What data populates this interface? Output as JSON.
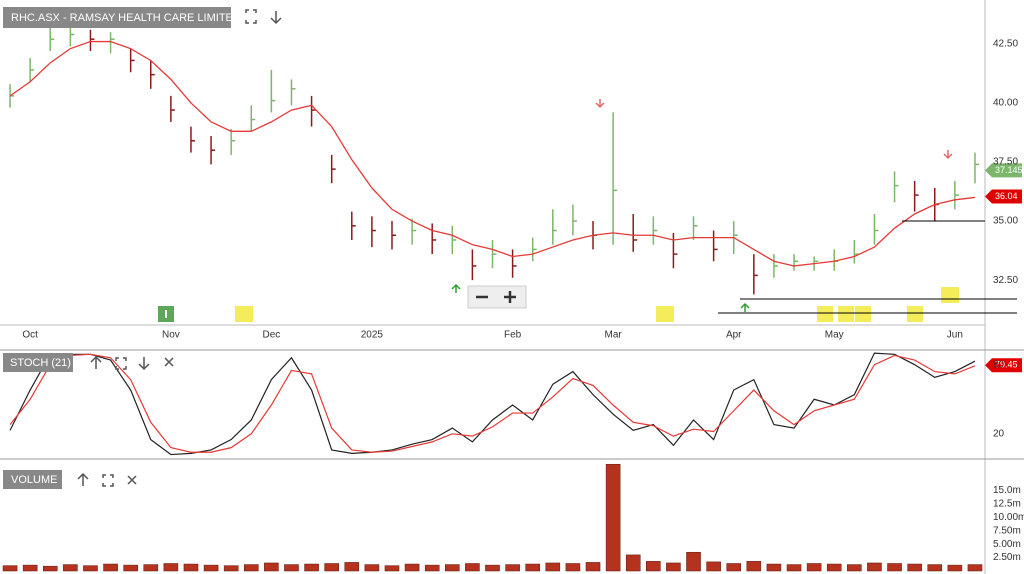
{
  "chart_data": [
    {
      "type": "ohlc",
      "title": "RHC.ASX - RAMSAY HEALTH CARE LIMITED",
      "categories": [
        null,
        "Oct",
        null,
        null,
        null,
        null,
        null,
        null,
        "Nov",
        null,
        null,
        null,
        null,
        "Dec",
        null,
        null,
        null,
        null,
        "2025",
        null,
        null,
        null,
        null,
        null,
        null,
        "Feb",
        null,
        null,
        null,
        null,
        "Mar",
        null,
        null,
        null,
        null,
        null,
        "Apr",
        null,
        null,
        null,
        null,
        "May",
        null,
        null,
        null,
        null,
        null,
        "Jun",
        null
      ],
      "high": [
        40.8,
        41.9,
        43.2,
        43.3,
        43.1,
        43.0,
        42.3,
        41.8,
        40.3,
        39.0,
        38.6,
        38.9,
        39.9,
        41.4,
        41.0,
        40.3,
        37.8,
        35.4,
        35.2,
        35.0,
        35.1,
        34.9,
        34.8,
        33.8,
        34.2,
        33.8,
        34.3,
        35.5,
        35.7,
        35.0,
        39.6,
        35.3,
        35.2,
        34.5,
        35.2,
        34.6,
        35.0,
        33.6,
        33.6,
        33.6,
        33.5,
        33.8,
        34.2,
        35.3,
        37.1,
        36.7,
        36.4,
        36.7,
        37.9
      ],
      "low": [
        39.8,
        40.9,
        42.2,
        42.4,
        42.2,
        42.1,
        41.3,
        40.6,
        39.2,
        37.9,
        37.4,
        37.8,
        38.8,
        39.6,
        39.9,
        39.0,
        36.6,
        34.2,
        33.9,
        33.8,
        34.0,
        33.6,
        33.6,
        32.5,
        33.0,
        32.6,
        33.3,
        34.0,
        34.4,
        33.8,
        34.0,
        33.7,
        34.0,
        33.0,
        34.2,
        33.3,
        33.6,
        31.9,
        32.6,
        32.9,
        32.9,
        32.9,
        33.2,
        34.0,
        35.8,
        35.4,
        35.0,
        35.5,
        36.6
      ],
      "close": [
        40.3,
        41.4,
        42.7,
        42.9,
        42.7,
        42.7,
        41.8,
        41.2,
        39.7,
        38.4,
        38.0,
        38.4,
        39.3,
        40.1,
        40.6,
        39.7,
        37.2,
        34.8,
        34.6,
        34.4,
        34.6,
        34.2,
        34.2,
        33.1,
        33.6,
        33.1,
        33.8,
        34.6,
        35.0,
        34.4,
        36.3,
        34.2,
        34.6,
        33.6,
        34.8,
        33.8,
        34.4,
        32.7,
        33.1,
        33.3,
        33.3,
        33.3,
        33.6,
        34.6,
        36.5,
        36.1,
        35.7,
        36.1,
        37.4
      ],
      "up_color": "#7cb66a",
      "down_color": "#8b1a1a",
      "moving_average": {
        "color": "#e53935",
        "values": [
          40.3,
          40.9,
          41.7,
          42.3,
          42.6,
          42.6,
          42.3,
          41.8,
          41.0,
          40.0,
          39.2,
          38.8,
          38.8,
          39.2,
          39.7,
          39.9,
          39.0,
          37.6,
          36.4,
          35.5,
          35.0,
          34.6,
          34.4,
          34.0,
          33.8,
          33.5,
          33.6,
          33.9,
          34.2,
          34.4,
          34.5,
          34.4,
          34.4,
          34.2,
          34.3,
          34.3,
          34.3,
          33.8,
          33.3,
          33.1,
          33.2,
          33.3,
          33.5,
          33.9,
          34.7,
          35.3,
          35.7,
          35.9,
          36.0
        ]
      },
      "markers": [
        {
          "value": 37.145,
          "color": "#7cb66a"
        },
        {
          "value": 36.04,
          "color": "#e00000"
        }
      ],
      "ylim": [
        30.6,
        44.36
      ],
      "yticks": [
        {
          "value": 32.5,
          "label": "32.50"
        },
        {
          "value": 35,
          "label": "35.00"
        },
        {
          "value": 37.5,
          "label": "37.50"
        },
        {
          "value": 40,
          "label": "40.00"
        },
        {
          "value": 42.5,
          "label": "42.50"
        }
      ],
      "grid": true
    },
    {
      "type": "line",
      "title": "STOCH (21)",
      "series": [
        {
          "color": "#222222",
          "values": [
            23,
            58,
            89,
            89,
            89,
            84,
            58,
            15,
            2,
            3,
            6,
            15,
            32,
            67,
            86,
            58,
            6,
            3,
            4,
            6,
            11,
            15,
            25,
            13,
            32,
            45,
            32,
            63,
            74,
            54,
            37,
            23,
            28,
            10,
            32,
            15,
            58,
            67,
            28,
            25,
            50,
            45,
            54,
            90,
            89,
            80,
            69,
            74,
            83
          ]
        },
        {
          "color": "#e53935",
          "values": [
            28,
            50,
            80,
            88,
            89,
            86,
            67,
            30,
            8,
            4,
            4,
            8,
            20,
            45,
            75,
            72,
            25,
            6,
            4,
            5,
            9,
            13,
            20,
            18,
            26,
            38,
            38,
            52,
            68,
            62,
            45,
            30,
            27,
            18,
            24,
            22,
            40,
            58,
            40,
            28,
            40,
            45,
            50,
            80,
            88,
            84,
            74,
            72,
            79
          ]
        }
      ],
      "markers": [
        {
          "value": 79.45,
          "color": "#e00000"
        }
      ],
      "ylim": [
        -1,
        91
      ],
      "yticks": [
        20,
        80
      ],
      "grid": true
    },
    {
      "type": "bar",
      "title": "VOLUME",
      "color": "#b5321e",
      "values": [
        1000000,
        1100000,
        900000,
        1200000,
        1000000,
        1300000,
        1100000,
        1200000,
        1400000,
        1300000,
        1100000,
        1000000,
        1200000,
        1500000,
        1200000,
        1300000,
        1400000,
        1600000,
        1200000,
        1000000,
        1300000,
        1100000,
        1200000,
        1400000,
        1100000,
        1200000,
        1300000,
        1500000,
        1400000,
        1600000,
        19900000,
        3000000,
        1800000,
        1500000,
        3500000,
        1700000,
        1400000,
        1800000,
        1300000,
        1200000,
        1400000,
        1300000,
        1200000,
        1500000,
        1400000,
        1300000,
        1200000,
        1100000,
        1200000
      ],
      "ylim": [
        0,
        20500000
      ],
      "yticks": [
        {
          "value": 2500000,
          "label": "2.50m"
        },
        {
          "value": 5000000,
          "label": "5.00m"
        },
        {
          "value": 7500000,
          "label": "7.50m"
        },
        {
          "value": 10000000,
          "label": "10.00m"
        },
        {
          "value": 12500000,
          "label": "12.5m"
        },
        {
          "value": 15000000,
          "label": "15.0m"
        }
      ],
      "grid": true
    }
  ]
}
